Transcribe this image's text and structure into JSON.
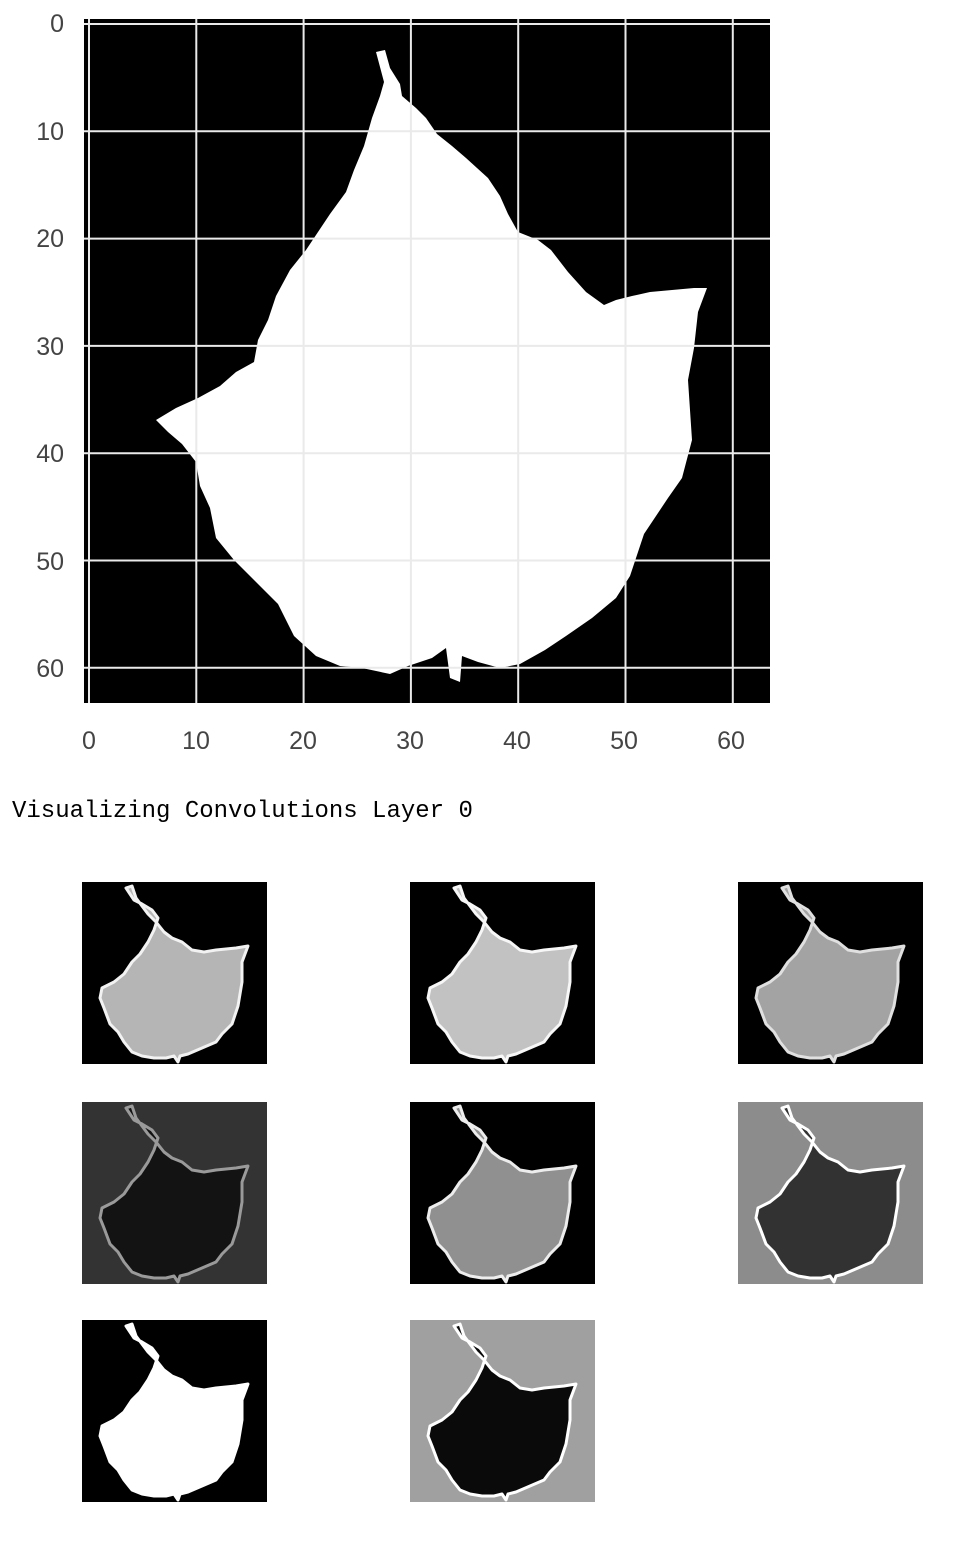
{
  "caption": "Visualizing Convolutions Layer 0",
  "plot": {
    "x_ticks": [
      "0",
      "10",
      "20",
      "30",
      "40",
      "50",
      "60"
    ],
    "y_ticks": [
      "0",
      "10",
      "20",
      "30",
      "40",
      "50",
      "60"
    ],
    "xlim": [
      0,
      63
    ],
    "ylim": [
      0,
      63
    ],
    "grid": true,
    "background_color": "#000000",
    "shape_color": "#ffffff",
    "grid_color": "#eaeaea"
  },
  "feature_maps": [
    {
      "background": "#000000",
      "fill": "#b5b5b5",
      "edge": "#f2f2f2"
    },
    {
      "background": "#000000",
      "fill": "#c2c2c2",
      "edge": "#f7f7f7"
    },
    {
      "background": "#000000",
      "fill": "#a3a3a3",
      "edge": "#e0e0e0"
    },
    {
      "background": "#333333",
      "fill": "#131313",
      "edge": "#9a9a9a"
    },
    {
      "background": "#000000",
      "fill": "#909090",
      "edge": "#ededed"
    },
    {
      "background": "#8c8c8c",
      "fill": "#323232",
      "edge": "#ffffff"
    },
    {
      "background": "#000000",
      "fill": "#ffffff",
      "edge": "#ffffff"
    },
    {
      "background": "#a0a0a0",
      "fill": "#0a0a0a",
      "edge": "#ffffff"
    }
  ]
}
